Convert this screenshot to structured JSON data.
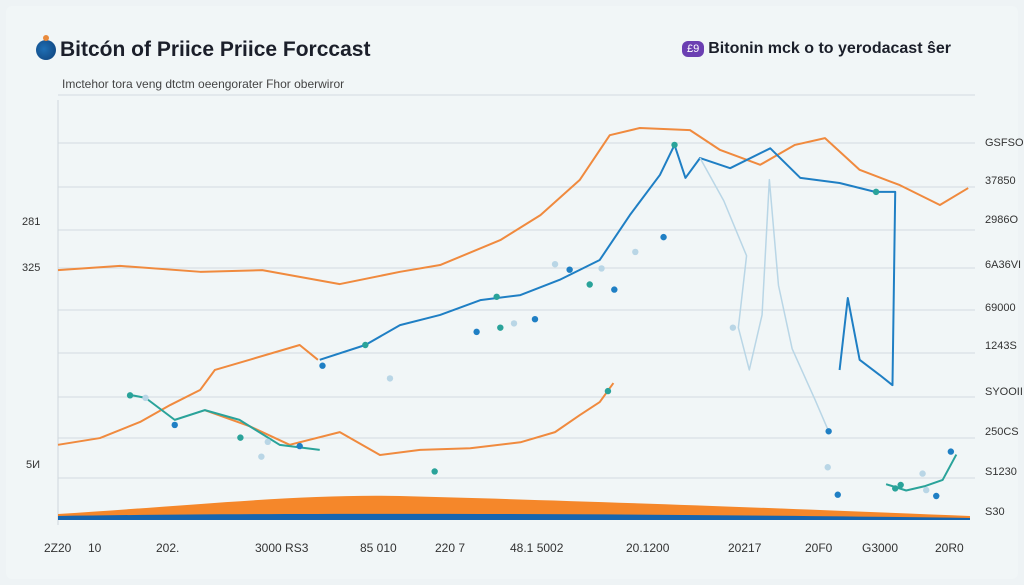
{
  "header": {
    "title": "Bitcón of Priice Priice Forccast",
    "subtitle": "Imctehor tora veng dtctm oeengorater Fhor oberwiror"
  },
  "legend": {
    "badge": "£9",
    "label": "Bitonin mck o to yerodacast ŝer"
  },
  "chart_data": {
    "type": "line",
    "title": "Bitcón of Priice Priice Forccast",
    "xlim": [
      0,
      100
    ],
    "ylim": [
      0,
      100
    ],
    "grid": true,
    "legend_position": "top-right",
    "left_tick_labels": [
      "281",
      "325",
      "5И"
    ],
    "right_tick_labels": [
      "GSFSO",
      "37850",
      "2986O",
      "6A36VI",
      "69000",
      "1243S",
      "SYOOII",
      "250CS",
      "S1230",
      "S30"
    ],
    "x_tick_labels": [
      "2Z20",
      "10",
      "202.",
      "3000 RS3",
      "85 010",
      "220 7",
      "48.1 5002",
      "20.1200",
      "20217",
      "20F0",
      "G3000",
      "20R0"
    ],
    "colors": {
      "orange": "#f08a3e",
      "blue": "#1f7fc4",
      "teal": "#2aa39a",
      "light_blue": "#b9d6e6",
      "area_orange": "#f5872a",
      "area_blue": "#1766b0"
    },
    "series": [
      {
        "color": "orange",
        "points": [
          [
            0,
            58.6
          ],
          [
            6.8,
            59.6
          ],
          [
            15.6,
            58.2
          ],
          [
            22.4,
            58.6
          ],
          [
            30.9,
            55.3
          ],
          [
            37.5,
            58.2
          ],
          [
            41.9,
            59.8
          ],
          [
            48.5,
            65.7
          ],
          [
            52.9,
            71.6
          ],
          [
            57.2,
            79.9
          ],
          [
            60.5,
            90.5
          ],
          [
            63.8,
            92.2
          ],
          [
            69.3,
            91.7
          ],
          [
            72.6,
            87
          ],
          [
            77,
            83.5
          ],
          [
            80.8,
            88.2
          ],
          [
            84.1,
            89.8
          ],
          [
            87.9,
            82.3
          ],
          [
            92.3,
            78.7
          ],
          [
            96.7,
            74
          ],
          [
            99.8,
            78
          ]
        ]
      },
      {
        "color": "orange",
        "points": [
          [
            0,
            17.3
          ],
          [
            4.6,
            18.9
          ],
          [
            9,
            22.7
          ],
          [
            12.3,
            26.7
          ],
          [
            15.6,
            30.3
          ],
          [
            17.2,
            35
          ],
          [
            21,
            37.4
          ],
          [
            26.5,
            40.9
          ],
          [
            28.5,
            37.4
          ]
        ]
      },
      {
        "color": "orange",
        "points": [
          [
            16.1,
            25.5
          ],
          [
            21,
            21.7
          ],
          [
            25.4,
            17.3
          ],
          [
            30.9,
            20.3
          ],
          [
            35.3,
            14.9
          ],
          [
            39.7,
            16.1
          ],
          [
            45.2,
            16.5
          ],
          [
            50.7,
            17.9
          ],
          [
            54.5,
            20.3
          ],
          [
            57.2,
            24.3
          ],
          [
            59.4,
            27.4
          ],
          [
            60.9,
            31.9
          ]
        ]
      },
      {
        "color": "blue",
        "points": [
          [
            28.7,
            37.4
          ],
          [
            33.7,
            40.9
          ],
          [
            37.5,
            45.6
          ],
          [
            41.9,
            48
          ],
          [
            46.3,
            51.5
          ],
          [
            50.7,
            52.7
          ],
          [
            55,
            56.3
          ],
          [
            59.4,
            61
          ],
          [
            62.7,
            71.6
          ],
          [
            66,
            81.1
          ],
          [
            67.6,
            88.2
          ],
          [
            68.8,
            80.4
          ],
          [
            70.4,
            85.1
          ],
          [
            73.7,
            82.7
          ],
          [
            78.1,
            87.4
          ],
          [
            81.4,
            80.4
          ],
          [
            85.7,
            79.2
          ],
          [
            89.6,
            77.1
          ],
          [
            91.8,
            77.1
          ],
          [
            91.5,
            31.4
          ],
          [
            90.1,
            33.8
          ],
          [
            87.9,
            37.4
          ],
          [
            86.6,
            52
          ],
          [
            85.7,
            35
          ]
        ]
      },
      {
        "color": "light_blue",
        "points": [
          [
            70.4,
            85.1
          ],
          [
            73,
            75
          ],
          [
            75.5,
            62
          ],
          [
            74.6,
            45
          ],
          [
            75.8,
            35
          ],
          [
            77.2,
            48
          ],
          [
            78,
            80
          ],
          [
            79,
            55
          ],
          [
            80.5,
            40
          ],
          [
            83,
            28
          ],
          [
            84.5,
            20.5
          ]
        ]
      },
      {
        "color": "teal",
        "points": [
          [
            7.9,
            29.1
          ],
          [
            9.6,
            28.4
          ],
          [
            12.8,
            23.2
          ],
          [
            16.1,
            25.5
          ],
          [
            19.9,
            23.2
          ],
          [
            24.3,
            17.3
          ],
          [
            28.7,
            16.1
          ]
        ]
      },
      {
        "color": "teal",
        "points": [
          [
            90.8,
            8
          ],
          [
            93,
            6.5
          ],
          [
            95,
            7.5
          ],
          [
            97,
            9
          ],
          [
            98.5,
            15
          ]
        ]
      }
    ],
    "dots": [
      [
        29,
        36
      ],
      [
        33.7,
        40.9
      ],
      [
        36.4,
        33
      ],
      [
        45.9,
        44
      ],
      [
        48.5,
        45
      ],
      [
        50,
        46
      ],
      [
        52.3,
        47
      ],
      [
        48.1,
        52.3
      ],
      [
        54.5,
        60
      ],
      [
        56.1,
        58.7
      ],
      [
        58.3,
        55.2
      ],
      [
        59.6,
        59
      ],
      [
        61,
        54
      ],
      [
        60.3,
        30
      ],
      [
        63.3,
        62.9
      ],
      [
        66.4,
        66.4
      ],
      [
        67.6,
        88.2
      ],
      [
        74,
        45
      ],
      [
        84.5,
        20.5
      ],
      [
        89.7,
        77.1
      ],
      [
        84.4,
        12
      ],
      [
        85.5,
        5.5
      ],
      [
        91.8,
        7
      ],
      [
        94.8,
        10.5
      ],
      [
        97.9,
        15.7
      ],
      [
        92.4,
        7.8
      ],
      [
        95.2,
        6.6
      ],
      [
        96.3,
        5.2
      ],
      [
        7.9,
        29
      ],
      [
        9.6,
        28.4
      ],
      [
        12.8,
        22
      ],
      [
        20,
        19
      ],
      [
        23,
        18
      ],
      [
        26.5,
        17
      ],
      [
        41.3,
        11
      ],
      [
        22.3,
        14.5
      ]
    ]
  }
}
